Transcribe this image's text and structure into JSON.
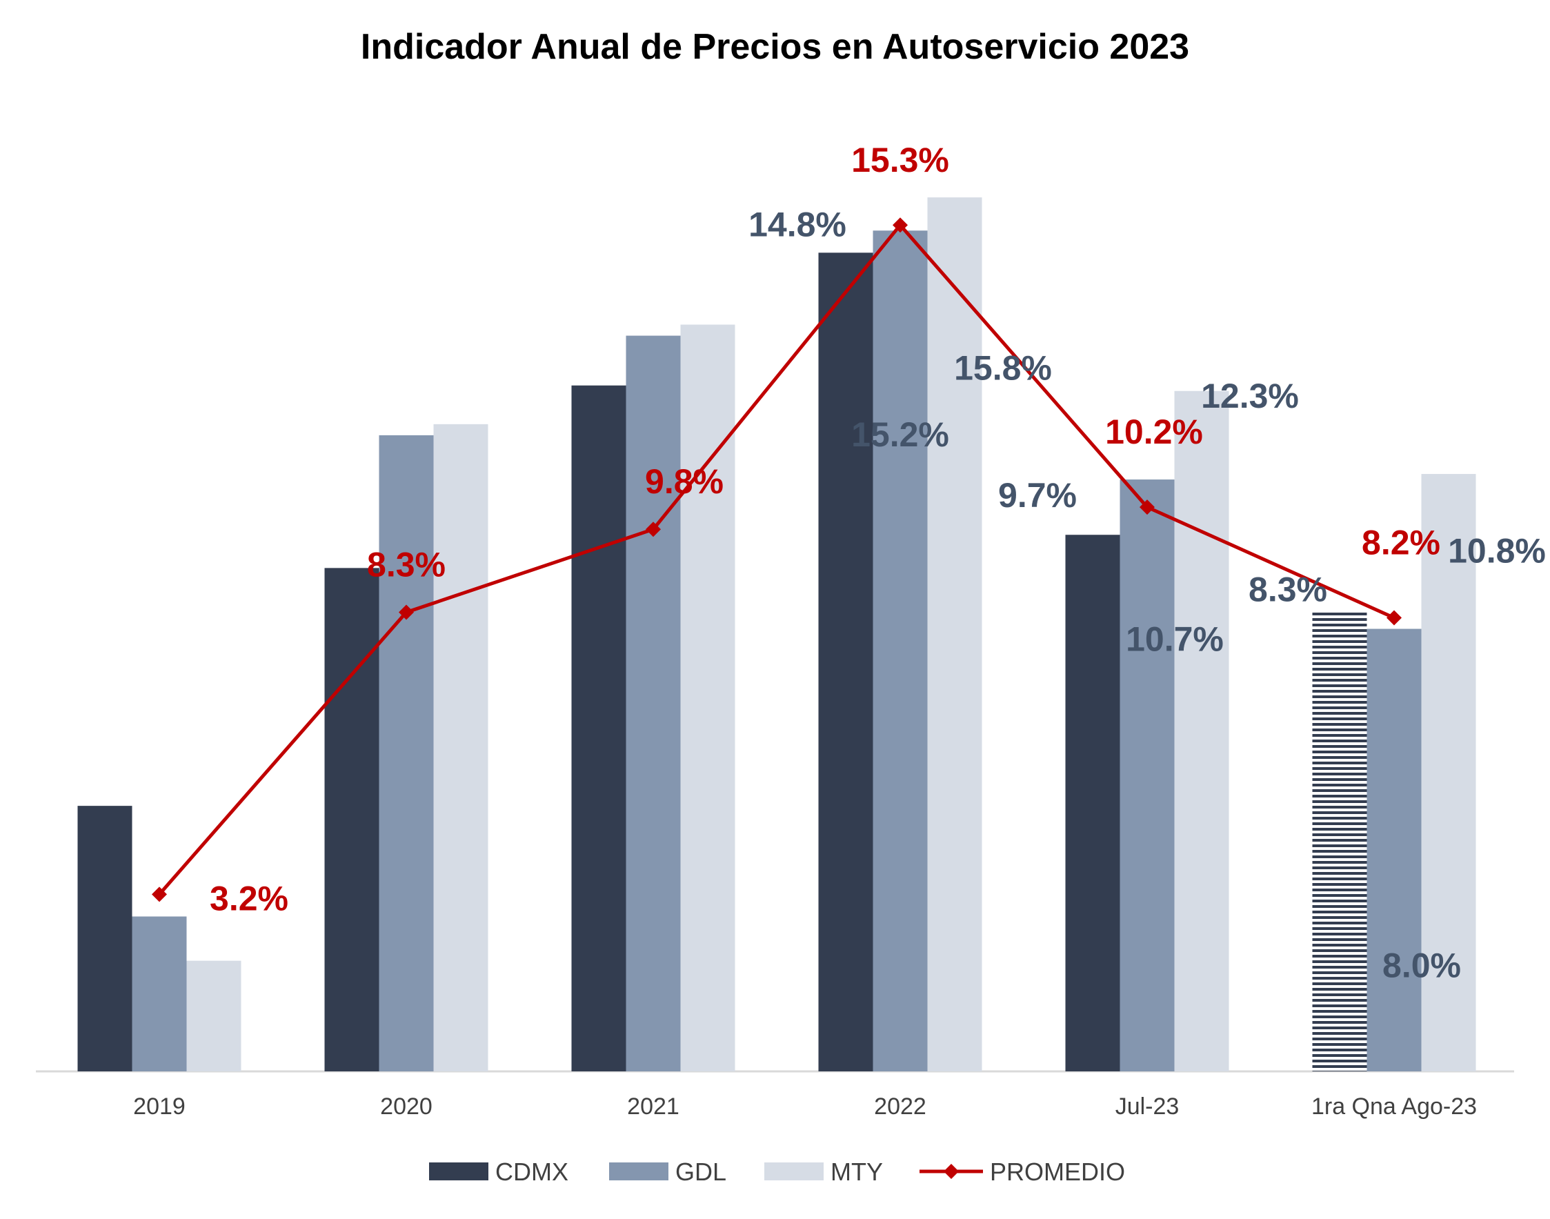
{
  "chart_data": {
    "type": "bar",
    "title": "Indicador Anual de Precios en Autoservicio 2023",
    "categories": [
      "2019",
      "2020",
      "2021",
      "2022",
      "Jul-23",
      "1ra Qna Ago-23"
    ],
    "ylim": [
      0,
      16.5
    ],
    "grid": false,
    "legend_position": "bottom",
    "series": [
      {
        "name": "CDMX",
        "color": "#333D50",
        "values": [
          4.8,
          9.1,
          12.4,
          14.8,
          9.7,
          8.3
        ],
        "labels": [
          "",
          "",
          "",
          "14.8%",
          "9.7%",
          "8.3%"
        ]
      },
      {
        "name": "GDL",
        "color": "#8496AF",
        "values": [
          2.8,
          11.5,
          13.3,
          15.2,
          10.7,
          8.0
        ],
        "labels": [
          "",
          "",
          "",
          "15.2%",
          "10.7%",
          "8.0%"
        ]
      },
      {
        "name": "MTY",
        "color": "#D6DCE5",
        "values": [
          2.0,
          11.7,
          13.5,
          15.8,
          12.3,
          10.8
        ],
        "labels": [
          "",
          "",
          "",
          "15.8%",
          "12.3%",
          "10.8%"
        ]
      }
    ],
    "line_series": {
      "name": "PROMEDIO",
      "color": "#C00000",
      "values": [
        3.2,
        8.3,
        9.8,
        15.3,
        10.2,
        8.2
      ],
      "labels": [
        "3.2%",
        "8.3%",
        "9.8%",
        "15.3%",
        "10.2%",
        "8.2%"
      ]
    },
    "label_color": "#44546A"
  }
}
